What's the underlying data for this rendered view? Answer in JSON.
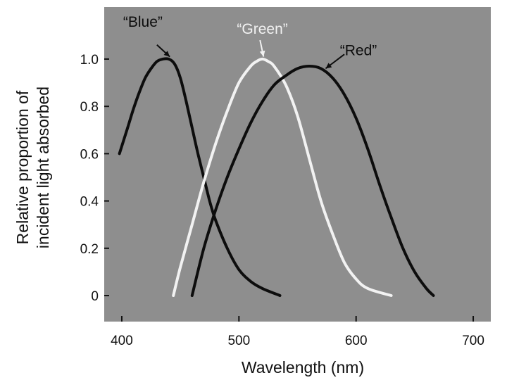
{
  "chart_data": {
    "type": "line",
    "title": "",
    "xlabel": "Wavelength (nm)",
    "ylabel_lines": [
      "Relative proportion of",
      "incident light absorbed"
    ],
    "xlim": [
      385,
      715
    ],
    "ylim": [
      -0.11,
      1.22
    ],
    "xticks": [
      400,
      500,
      600,
      700
    ],
    "yticks": [
      0,
      0.2,
      0.4,
      0.6,
      0.8,
      1.0
    ],
    "ytick_labels": [
      "0",
      "0.2",
      "0.4",
      "0.6",
      "0.8",
      "1.0"
    ],
    "grid": false,
    "plot_background": "#8e8e8e",
    "series": [
      {
        "name": "“Blue”",
        "color": "#0d0d0d",
        "label_pos": [
          418,
          1.16
        ],
        "arrow_start": [
          430,
          1.06
        ],
        "arrow_end": [
          441,
          1.01
        ],
        "x": [
          398,
          405,
          410,
          415,
          420,
          425,
          430,
          435,
          440,
          445,
          450,
          455,
          460,
          465,
          470,
          475,
          480,
          490,
          500,
          510,
          520,
          535
        ],
        "y": [
          0.6,
          0.71,
          0.79,
          0.86,
          0.92,
          0.96,
          0.99,
          1.0,
          1.0,
          0.98,
          0.92,
          0.82,
          0.71,
          0.6,
          0.5,
          0.4,
          0.32,
          0.2,
          0.11,
          0.06,
          0.03,
          0.0
        ]
      },
      {
        "name": "“Green”",
        "color": "#f2f2f2",
        "label_pos": [
          520,
          1.13
        ],
        "arrow_start": [
          518,
          1.08
        ],
        "arrow_end": [
          521,
          1.01
        ],
        "x": [
          444,
          450,
          460,
          470,
          480,
          490,
          500,
          510,
          515,
          520,
          525,
          530,
          540,
          550,
          560,
          570,
          580,
          590,
          600,
          610,
          630
        ],
        "y": [
          0.0,
          0.12,
          0.3,
          0.48,
          0.64,
          0.78,
          0.9,
          0.97,
          0.99,
          1.0,
          0.99,
          0.97,
          0.89,
          0.76,
          0.58,
          0.4,
          0.26,
          0.14,
          0.07,
          0.03,
          0.0
        ]
      },
      {
        "name": "“Red”",
        "color": "#0d0d0d",
        "label_pos": [
          602,
          1.04
        ],
        "arrow_start": [
          590,
          1.02
        ],
        "arrow_end": [
          574,
          0.96
        ],
        "x": [
          460,
          470,
          480,
          490,
          500,
          510,
          520,
          530,
          540,
          550,
          560,
          570,
          580,
          590,
          600,
          610,
          620,
          630,
          640,
          650,
          660,
          666
        ],
        "y": [
          0.0,
          0.2,
          0.36,
          0.5,
          0.62,
          0.73,
          0.82,
          0.89,
          0.93,
          0.96,
          0.97,
          0.96,
          0.92,
          0.85,
          0.75,
          0.62,
          0.47,
          0.33,
          0.2,
          0.1,
          0.03,
          0.0
        ]
      }
    ]
  }
}
